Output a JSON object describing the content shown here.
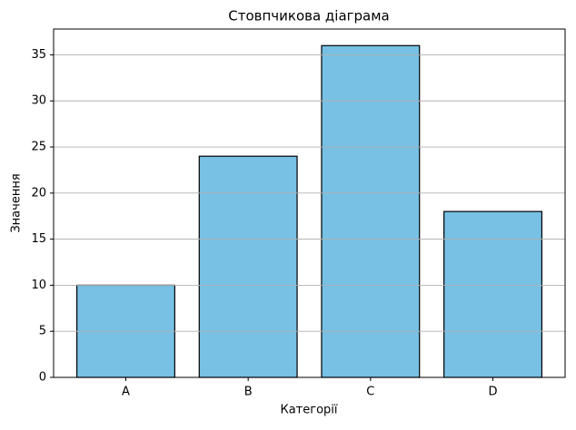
{
  "chart_data": {
    "type": "bar",
    "title": "Стовпчикова діаграма",
    "x_label": "Категорії",
    "y_label": "Значення",
    "categories": [
      "A",
      "B",
      "C",
      "D"
    ],
    "values": [
      10,
      24,
      36,
      18
    ],
    "color": "#78c1e5",
    "edgecolor": "#000000",
    "ylim": [
      0,
      37.8
    ],
    "yticks": [
      0,
      5,
      10,
      15,
      20,
      25,
      30,
      35
    ],
    "grid": true
  }
}
